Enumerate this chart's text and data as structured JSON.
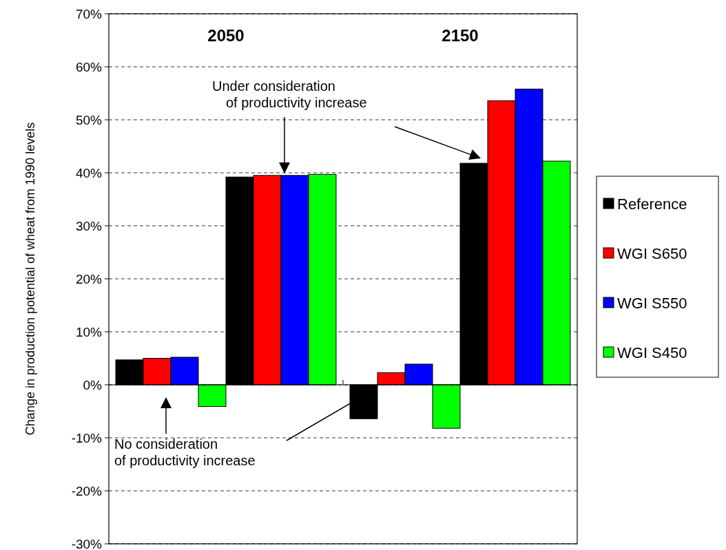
{
  "chart_data": {
    "type": "bar",
    "categories": [
      null,
      null,
      null,
      null
    ],
    "series": [
      {
        "name": "Reference",
        "color": "#000000",
        "values": [
          4.7,
          39.2,
          -6.4,
          41.8
        ]
      },
      {
        "name": "WGI S650",
        "color": "#ff0000",
        "values": [
          5.0,
          39.5,
          2.3,
          53.6
        ]
      },
      {
        "name": "WGI S550",
        "color": "#0000ff",
        "values": [
          5.2,
          39.5,
          3.9,
          55.8
        ]
      },
      {
        "name": "WGI S450",
        "color": "#00ff00",
        "values": [
          -4.1,
          39.7,
          -8.2,
          42.2
        ]
      }
    ],
    "ylabel": "Change in production potential of wheat from 1990 levels",
    "ylim": [
      -30,
      70
    ],
    "yticks": [
      {
        "value": -30,
        "label": "-30%"
      },
      {
        "value": -20,
        "label": "-20%"
      },
      {
        "value": -10,
        "label": "-10%"
      },
      {
        "value": 0,
        "label": "0%"
      },
      {
        "value": 10,
        "label": "10%"
      },
      {
        "value": 20,
        "label": "20%"
      },
      {
        "value": 30,
        "label": "30%"
      },
      {
        "value": 40,
        "label": "40%"
      },
      {
        "value": 50,
        "label": "50%"
      },
      {
        "value": 60,
        "label": "60%"
      },
      {
        "value": 70,
        "label": "70%"
      }
    ],
    "annotations": [
      "2050",
      "2150",
      "Under consideration\nof productivity increase",
      "No consideration\nof productivity increase"
    ],
    "grid": "y",
    "legend": "right"
  }
}
